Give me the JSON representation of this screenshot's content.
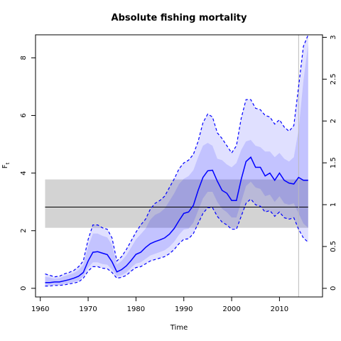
{
  "chart_data": {
    "type": "line",
    "title": "Absolute fishing mortality",
    "xlabel": "Time",
    "ylabel": "F_t",
    "ylabel_main": "F",
    "ylabel_sub": "t",
    "xlim": [
      1959,
      2019
    ],
    "ylim": [
      -0.3,
      8.8
    ],
    "ylim_right": [
      -0.103,
      3.03
    ],
    "x_ticks": [
      1960,
      1970,
      1980,
      1990,
      2000,
      2010
    ],
    "x_tick_labels": [
      "1960",
      "1970",
      "1980",
      "1990",
      "2000",
      "2010"
    ],
    "y_ticks": [
      0,
      2,
      4,
      6,
      8
    ],
    "y_tick_labels": [
      "0",
      "2",
      "4",
      "6",
      "8"
    ],
    "y2_ticks": [
      0,
      0.5,
      1,
      1.5,
      2,
      2.5,
      3
    ],
    "y2_tick_labels": [
      "0",
      "0.5",
      "1",
      "1.5",
      "2",
      "2.5",
      "3"
    ],
    "reference_band": {
      "x_start": 1961,
      "x_end": 2016,
      "lower": 2.1,
      "upper": 3.78
    },
    "reference_line": {
      "x_start": 1961,
      "x_end": 2016,
      "value": 2.82
    },
    "vertical_line": {
      "x": 2014
    },
    "projection_start": 2014,
    "x": [
      1961,
      1962,
      1963,
      1964,
      1965,
      1966,
      1967,
      1968,
      1969,
      1970,
      1971,
      1972,
      1973,
      1974,
      1975,
      1976,
      1977,
      1978,
      1979,
      1980,
      1981,
      1982,
      1983,
      1984,
      1985,
      1986,
      1987,
      1988,
      1989,
      1990,
      1991,
      1992,
      1993,
      1994,
      1995,
      1996,
      1997,
      1998,
      1999,
      2000,
      2001,
      2002,
      2003,
      2004,
      2005,
      2006,
      2007,
      2008,
      2009,
      2010,
      2011,
      2012,
      2013,
      2014,
      2015,
      2016
    ],
    "series": [
      {
        "name": "estimate",
        "style": "solid",
        "color": "#0000ff",
        "values": [
          0.2,
          0.2,
          0.22,
          0.22,
          0.26,
          0.3,
          0.35,
          0.42,
          0.55,
          0.95,
          1.25,
          1.27,
          1.22,
          1.17,
          0.92,
          0.57,
          0.65,
          0.78,
          0.97,
          1.18,
          1.25,
          1.42,
          1.55,
          1.62,
          1.68,
          1.75,
          1.88,
          2.08,
          2.35,
          2.6,
          2.65,
          2.88,
          3.4,
          3.85,
          4.08,
          4.1,
          3.72,
          3.4,
          3.3,
          3.05,
          3.05,
          3.78,
          4.4,
          4.55,
          4.2,
          4.2,
          3.9,
          4.0,
          3.75,
          4.0,
          3.75,
          3.65,
          3.62,
          3.85,
          3.75,
          3.75
        ]
      },
      {
        "name": "upper",
        "style": "dashed",
        "color": "#0000ff",
        "values": [
          0.5,
          0.45,
          0.4,
          0.42,
          0.5,
          0.55,
          0.62,
          0.75,
          0.95,
          1.7,
          2.2,
          2.2,
          2.1,
          2.05,
          1.75,
          0.95,
          1.1,
          1.35,
          1.65,
          1.95,
          2.2,
          2.4,
          2.75,
          2.95,
          3.05,
          3.2,
          3.5,
          3.8,
          4.15,
          4.35,
          4.45,
          4.65,
          5.1,
          5.75,
          6.05,
          5.95,
          5.4,
          5.2,
          4.95,
          4.7,
          4.95,
          5.9,
          6.55,
          6.55,
          6.25,
          6.2,
          6.0,
          5.95,
          5.7,
          5.85,
          5.6,
          5.45,
          5.65,
          7.0,
          8.4,
          8.8
        ]
      },
      {
        "name": "lower",
        "style": "dashed",
        "color": "#0000ff",
        "values": [
          0.08,
          0.08,
          0.1,
          0.1,
          0.12,
          0.15,
          0.18,
          0.22,
          0.35,
          0.6,
          0.75,
          0.75,
          0.7,
          0.68,
          0.55,
          0.35,
          0.38,
          0.45,
          0.6,
          0.72,
          0.75,
          0.85,
          0.95,
          1.0,
          1.05,
          1.1,
          1.2,
          1.35,
          1.55,
          1.7,
          1.72,
          1.9,
          2.25,
          2.6,
          2.8,
          2.8,
          2.5,
          2.3,
          2.2,
          2.05,
          2.05,
          2.5,
          2.95,
          3.1,
          2.9,
          2.85,
          2.65,
          2.7,
          2.5,
          2.65,
          2.45,
          2.4,
          2.45,
          2.05,
          1.75,
          1.6
        ]
      },
      {
        "name": "inner_upper",
        "style": "fill",
        "color": "#ddddff",
        "values": [
          0.4,
          0.37,
          0.33,
          0.35,
          0.42,
          0.47,
          0.53,
          0.63,
          0.82,
          1.45,
          1.9,
          1.9,
          1.82,
          1.77,
          1.5,
          0.83,
          0.95,
          1.15,
          1.42,
          1.7,
          1.88,
          2.07,
          2.38,
          2.55,
          2.63,
          2.77,
          3.03,
          3.3,
          3.62,
          3.8,
          3.9,
          4.1,
          4.55,
          4.95,
          5.05,
          4.95,
          4.5,
          4.45,
          4.3,
          4.2,
          4.35,
          4.8,
          5.1,
          5.15,
          4.95,
          4.9,
          4.75,
          4.75,
          4.55,
          4.7,
          4.5,
          4.4,
          4.55,
          5.5,
          7.2,
          8.5
        ]
      },
      {
        "name": "inner_lower",
        "style": "fill",
        "color": "#ddddff",
        "values": [
          0.11,
          0.11,
          0.12,
          0.12,
          0.15,
          0.18,
          0.22,
          0.27,
          0.42,
          0.72,
          0.9,
          0.9,
          0.84,
          0.82,
          0.66,
          0.42,
          0.46,
          0.55,
          0.72,
          0.86,
          0.9,
          1.02,
          1.14,
          1.2,
          1.26,
          1.32,
          1.44,
          1.62,
          1.86,
          2.04,
          2.07,
          2.28,
          2.7,
          3.12,
          3.35,
          3.35,
          3.0,
          2.76,
          2.64,
          2.46,
          2.46,
          3.0,
          3.55,
          3.7,
          3.5,
          3.45,
          3.2,
          3.25,
          3.0,
          3.2,
          2.95,
          2.9,
          2.95,
          2.6,
          2.25,
          2.1
        ]
      }
    ],
    "colors": {
      "estimate": "#0000ff",
      "ci_fill": "#dcdcff",
      "band": "#d3d3d3",
      "vline": "#bbbbbb"
    },
    "grid": false,
    "legend": "none"
  }
}
